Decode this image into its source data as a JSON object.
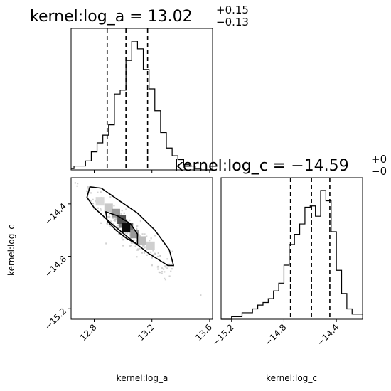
{
  "chart_data": [
    {
      "type": "histogram",
      "parameter": "kernel:log_a",
      "title": {
        "name": "kernel:log_a",
        "eq": " = ",
        "median": "13.02",
        "upper": "+0.15",
        "lower": "−0.13"
      },
      "median": 13.02,
      "quantiles": [
        12.89,
        13.02,
        13.17
      ],
      "xlim": [
        12.64,
        13.62
      ],
      "bin_edges": [
        12.62,
        12.66,
        12.7,
        12.74,
        12.78,
        12.82,
        12.86,
        12.9,
        12.94,
        12.98,
        13.02,
        13.06,
        13.1,
        13.14,
        13.18,
        13.22,
        13.26,
        13.3,
        13.34,
        13.38,
        13.42,
        13.46,
        13.5,
        13.54,
        13.58,
        13.62
      ],
      "counts": [
        0.01,
        0.03,
        0.03,
        0.07,
        0.14,
        0.21,
        0.27,
        0.35,
        0.59,
        0.62,
        0.85,
        1.0,
        0.94,
        0.78,
        0.63,
        0.46,
        0.29,
        0.17,
        0.11,
        0.08,
        0.04,
        0.03,
        0.01,
        0.0,
        0.0
      ]
    },
    {
      "type": "scatter",
      "x_param": "kernel:log_a",
      "y_param": "kernel:log_c",
      "xlim": [
        12.64,
        13.62
      ],
      "ylim": [
        -15.28,
        -14.2
      ],
      "xticks": [
        {
          "value": 12.8,
          "label": "12.8"
        },
        {
          "value": 13.2,
          "label": "13.2"
        },
        {
          "value": 13.6,
          "label": "13.6"
        }
      ],
      "yticks": [
        {
          "value": -14.4,
          "label": "−14.4"
        },
        {
          "value": -14.8,
          "label": "−14.8"
        },
        {
          "value": -15.2,
          "label": "−15.2"
        }
      ],
      "xlabel": "kernel:log_a",
      "ylabel": "kernel:log_c",
      "density_cells": [
        {
          "x": 12.9,
          "y": -14.43,
          "v": 0.15
        },
        {
          "x": 12.95,
          "y": -14.47,
          "v": 0.35
        },
        {
          "x": 13.0,
          "y": -14.55,
          "v": 0.45
        },
        {
          "x": 12.99,
          "y": -14.52,
          "v": 0.65
        },
        {
          "x": 13.04,
          "y": -14.58,
          "v": 0.55
        },
        {
          "x": 13.02,
          "y": -14.58,
          "v": 0.95
        },
        {
          "x": 13.08,
          "y": -14.63,
          "v": 0.35
        },
        {
          "x": 13.13,
          "y": -14.68,
          "v": 0.2
        },
        {
          "x": 13.19,
          "y": -14.72,
          "v": 0.12
        },
        {
          "x": 12.84,
          "y": -14.38,
          "v": 0.08
        }
      ],
      "contour_outer": [
        [
          12.77,
          -14.27
        ],
        [
          12.85,
          -14.28
        ],
        [
          12.98,
          -14.38
        ],
        [
          13.1,
          -14.47
        ],
        [
          13.22,
          -14.6
        ],
        [
          13.32,
          -14.75
        ],
        [
          13.35,
          -14.87
        ],
        [
          13.31,
          -14.87
        ],
        [
          13.18,
          -14.78
        ],
        [
          13.04,
          -14.66
        ],
        [
          12.92,
          -14.55
        ],
        [
          12.8,
          -14.43
        ],
        [
          12.75,
          -14.35
        ],
        [
          12.77,
          -14.27
        ]
      ],
      "contour_inner": [
        [
          12.88,
          -14.46
        ],
        [
          12.96,
          -14.49
        ],
        [
          13.05,
          -14.55
        ],
        [
          13.1,
          -14.63
        ],
        [
          13.1,
          -14.71
        ],
        [
          13.02,
          -14.66
        ],
        [
          12.95,
          -14.6
        ],
        [
          12.89,
          -14.53
        ],
        [
          12.88,
          -14.46
        ]
      ]
    },
    {
      "type": "histogram",
      "parameter": "kernel:log_c",
      "title": {
        "name": "kernel:log_c",
        "eq": " = ",
        "median": "−14.59",
        "upper": "+0",
        "lower": "−0"
      },
      "median": -14.59,
      "quantiles": [
        -14.75,
        -14.59,
        -14.45
      ],
      "xlim": [
        -15.28,
        -14.2
      ],
      "xticks": [
        {
          "value": -15.2,
          "label": "−15.2"
        },
        {
          "value": -14.8,
          "label": "−14.8"
        },
        {
          "value": -14.4,
          "label": "−14.4"
        }
      ],
      "xlabel": "kernel:log_c",
      "bin_edges": [
        -15.28,
        -15.24,
        -15.2,
        -15.16,
        -15.12,
        -15.08,
        -15.04,
        -15.0,
        -14.96,
        -14.92,
        -14.88,
        -14.84,
        -14.8,
        -14.76,
        -14.72,
        -14.68,
        -14.64,
        -14.6,
        -14.56,
        -14.52,
        -14.48,
        -14.44,
        -14.4,
        -14.36,
        -14.32,
        -14.28,
        -14.24,
        -14.2
      ],
      "counts": [
        0.0,
        0.0,
        0.02,
        0.02,
        0.05,
        0.05,
        0.08,
        0.11,
        0.13,
        0.16,
        0.22,
        0.28,
        0.42,
        0.58,
        0.66,
        0.74,
        0.87,
        0.88,
        0.8,
        1.0,
        0.92,
        0.68,
        0.38,
        0.2,
        0.08,
        0.04,
        0.04
      ]
    }
  ]
}
